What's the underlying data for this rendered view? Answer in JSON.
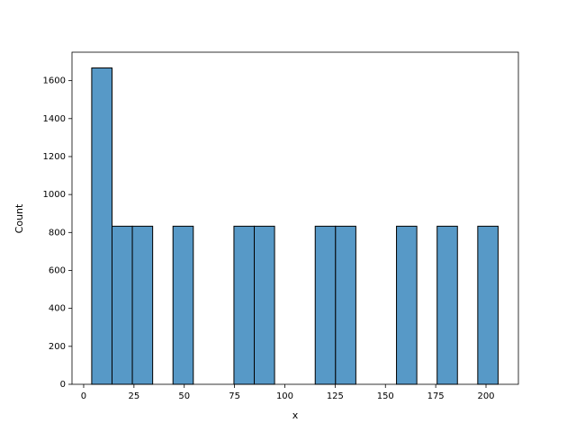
{
  "chart_data": {
    "type": "histogram",
    "x_label": "x",
    "y_label": "Count",
    "bins": [
      4,
      14.1,
      24.2,
      34.3,
      44.4,
      54.5,
      64.6,
      74.7,
      84.8,
      94.9,
      105,
      115.1,
      125.2,
      135.3,
      145.4,
      155.5,
      165.6,
      175.7,
      185.8,
      195.9,
      206
    ],
    "counts": [
      1667,
      833,
      833,
      0,
      833,
      0,
      0,
      833,
      833,
      0,
      0,
      833,
      833,
      0,
      0,
      833,
      0,
      833,
      0,
      833
    ],
    "color": "#5799c7",
    "edgecolor": "#000000",
    "xlim": [
      -5.8,
      216.1
    ],
    "xticks": [
      0,
      25,
      50,
      75,
      100,
      125,
      150,
      175,
      200
    ],
    "ylim": [
      0,
      1750
    ],
    "yticks": [
      0,
      200,
      400,
      600,
      800,
      1000,
      1200,
      1400,
      1600
    ]
  }
}
